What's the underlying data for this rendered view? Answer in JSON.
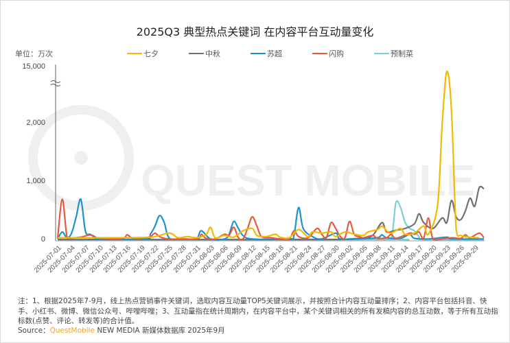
{
  "header": {
    "title": "2025Q3 典型热点关键词 在内容平台互动量变化",
    "unit_label": "单位：万次"
  },
  "legend": [
    {
      "label": "七夕",
      "color": "#f5b800"
    },
    {
      "label": "中秋",
      "color": "#707070"
    },
    {
      "label": "苏超",
      "color": "#1e90d0"
    },
    {
      "label": "闪购",
      "color": "#e8583a"
    },
    {
      "label": "预制菜",
      "color": "#7ccfd6"
    }
  ],
  "footer": {
    "note": "注：1、根据2025年7-9月，线上热点营销事件关键词，选取内容互动量TOP5关键词展示，并按照合计内容互动量排序；2、内容平台包括抖音、快手、小红书、微博、微信公众号、哔哩哔哩；3、互动量指在统计周期内，在内容平台中，某个关键词相关的所有发稿内容的总互动数，等于所有互动指标数(点赞、评论、转发等)的合计值。",
    "source_prefix": "Source：",
    "source_brand": "QuestMobile",
    "source_suffix": " NEW MEDIA 新媒体数据库 2025年9月"
  },
  "watermark": "QUEST MOBILE",
  "chart_data": {
    "type": "line",
    "title": "2025Q3 典型热点关键词 在内容平台互动量变化",
    "xlabel": "",
    "ylabel": "单位：万次",
    "y_ticks": [
      "0",
      "1,000",
      "2,000",
      "15,000"
    ],
    "y_axis_break": true,
    "ylim": [
      0,
      15000
    ],
    "grid": false,
    "legend_position": "top",
    "x_tick_labels": [
      "2025-07-01",
      "2025-07-04",
      "2025-07-07",
      "2025-07-10",
      "2025-07-13",
      "2025-07-16",
      "2025-07-19",
      "2025-07-22",
      "2025-07-25",
      "2025-07-28",
      "2025-07-31",
      "2025-08-03",
      "2025-08-06",
      "2025-08-09",
      "2025-08-12",
      "2025-08-15",
      "2025-08-18",
      "2025-08-21",
      "2025-08-24",
      "2025-08-27",
      "2025-08-30",
      "2025-09-02",
      "2025-09-05",
      "2025-09-08",
      "2025-09-11",
      "2025-09-14",
      "2025-09-17",
      "2025-09-20",
      "2025-09-23",
      "2025-09-26",
      "2025-09-29"
    ],
    "x_start": "2025-07-01",
    "x_end": "2025-09-30",
    "series": [
      {
        "name": "七夕",
        "color": "#f5b800",
        "points": [
          [
            0,
            40
          ],
          [
            10,
            40
          ],
          [
            20,
            50
          ],
          [
            24,
            120
          ],
          [
            26,
            40
          ],
          [
            28,
            60
          ],
          [
            30,
            40
          ],
          [
            32,
            90
          ],
          [
            33,
            220
          ],
          [
            34,
            40
          ],
          [
            36,
            80
          ],
          [
            38,
            50
          ],
          [
            40,
            160
          ],
          [
            42,
            200
          ],
          [
            43,
            80
          ],
          [
            45,
            60
          ],
          [
            47,
            100
          ],
          [
            48,
            50
          ],
          [
            50,
            40
          ],
          [
            52,
            180
          ],
          [
            54,
            60
          ],
          [
            55,
            140
          ],
          [
            57,
            120
          ],
          [
            59,
            140
          ],
          [
            60,
            60
          ],
          [
            62,
            140
          ],
          [
            64,
            100
          ],
          [
            66,
            80
          ],
          [
            67,
            140
          ],
          [
            69,
            180
          ],
          [
            70,
            240
          ],
          [
            71,
            160
          ],
          [
            72,
            120
          ],
          [
            74,
            200
          ],
          [
            75,
            100
          ],
          [
            77,
            120
          ],
          [
            79,
            240
          ],
          [
            80,
            100
          ],
          [
            82,
            600
          ],
          [
            83,
            2000
          ],
          [
            84,
            14000
          ],
          [
            85,
            5000
          ],
          [
            86,
            200
          ],
          [
            87,
            80
          ],
          [
            89,
            50
          ],
          [
            91,
            40
          ]
        ]
      },
      {
        "name": "中秋",
        "color": "#707070",
        "points": [
          [
            0,
            10
          ],
          [
            55,
            10
          ],
          [
            63,
            20
          ],
          [
            66,
            40
          ],
          [
            68,
            80
          ],
          [
            70,
            300
          ],
          [
            71,
            140
          ],
          [
            73,
            170
          ],
          [
            75,
            200
          ],
          [
            77,
            280
          ],
          [
            78,
            450
          ],
          [
            79,
            300
          ],
          [
            81,
            200
          ],
          [
            83,
            380
          ],
          [
            84,
            300
          ],
          [
            85,
            680
          ],
          [
            86,
            400
          ],
          [
            87,
            350
          ],
          [
            88,
            500
          ],
          [
            89,
            720
          ],
          [
            90,
            580
          ],
          [
            91,
            900
          ],
          [
            92,
            880
          ]
        ]
      },
      {
        "name": "苏超",
        "color": "#1e90d0",
        "points": [
          [
            0,
            20
          ],
          [
            1,
            140
          ],
          [
            2,
            40
          ],
          [
            3,
            120
          ],
          [
            4,
            400
          ],
          [
            5,
            700
          ],
          [
            6,
            150
          ],
          [
            7,
            100
          ],
          [
            8,
            60
          ],
          [
            9,
            20
          ],
          [
            19,
            20
          ],
          [
            20,
            100
          ],
          [
            21,
            240
          ],
          [
            22,
            420
          ],
          [
            23,
            300
          ],
          [
            24,
            40
          ],
          [
            26,
            20
          ],
          [
            28,
            20
          ],
          [
            30,
            20
          ],
          [
            31,
            160
          ],
          [
            33,
            20
          ],
          [
            36,
            20
          ],
          [
            37,
            100
          ],
          [
            38,
            320
          ],
          [
            39,
            200
          ],
          [
            40,
            80
          ],
          [
            42,
            20
          ],
          [
            50,
            20
          ],
          [
            51,
            80
          ],
          [
            52,
            560
          ],
          [
            53,
            200
          ],
          [
            55,
            60
          ],
          [
            57,
            20
          ],
          [
            60,
            120
          ],
          [
            61,
            20
          ],
          [
            65,
            20
          ],
          [
            69,
            40
          ],
          [
            70,
            90
          ],
          [
            71,
            40
          ],
          [
            74,
            30
          ],
          [
            76,
            100
          ],
          [
            77,
            30
          ],
          [
            80,
            20
          ],
          [
            84,
            50
          ],
          [
            85,
            20
          ],
          [
            92,
            20
          ]
        ]
      },
      {
        "name": "闪购",
        "color": "#e8583a",
        "points": [
          [
            0,
            30
          ],
          [
            1,
            700
          ],
          [
            2,
            60
          ],
          [
            3,
            40
          ],
          [
            5,
            50
          ],
          [
            7,
            90
          ],
          [
            8,
            50
          ],
          [
            10,
            30
          ],
          [
            14,
            30
          ],
          [
            15,
            90
          ],
          [
            16,
            40
          ],
          [
            18,
            30
          ],
          [
            20,
            60
          ],
          [
            21,
            120
          ],
          [
            22,
            60
          ],
          [
            24,
            20
          ],
          [
            30,
            20
          ],
          [
            31,
            100
          ],
          [
            32,
            30
          ],
          [
            34,
            20
          ],
          [
            36,
            100
          ],
          [
            37,
            80
          ],
          [
            38,
            220
          ],
          [
            39,
            40
          ],
          [
            40,
            20
          ],
          [
            41,
            200
          ],
          [
            42,
            400
          ],
          [
            43,
            240
          ],
          [
            44,
            60
          ],
          [
            46,
            40
          ],
          [
            48,
            20
          ],
          [
            50,
            20
          ],
          [
            51,
            160
          ],
          [
            52,
            60
          ],
          [
            54,
            40
          ],
          [
            56,
            200
          ],
          [
            57,
            100
          ],
          [
            58,
            40
          ],
          [
            59,
            300
          ],
          [
            60,
            200
          ],
          [
            61,
            60
          ],
          [
            62,
            40
          ],
          [
            63,
            320
          ],
          [
            64,
            100
          ],
          [
            65,
            60
          ],
          [
            66,
            40
          ],
          [
            68,
            80
          ],
          [
            69,
            30
          ],
          [
            71,
            40
          ],
          [
            72,
            100
          ],
          [
            73,
            30
          ],
          [
            76,
            120
          ],
          [
            77,
            100
          ],
          [
            78,
            140
          ],
          [
            79,
            30
          ],
          [
            80,
            380
          ],
          [
            81,
            20
          ],
          [
            83,
            20
          ],
          [
            85,
            40
          ],
          [
            87,
            30
          ],
          [
            88,
            90
          ],
          [
            89,
            40
          ],
          [
            91,
            120
          ],
          [
            92,
            40
          ]
        ]
      },
      {
        "name": "预制菜",
        "color": "#7ccfd6",
        "points": [
          [
            0,
            5
          ],
          [
            70,
            10
          ],
          [
            72,
            40
          ],
          [
            73,
            640
          ],
          [
            74,
            560
          ],
          [
            75,
            300
          ],
          [
            76,
            200
          ],
          [
            77,
            160
          ],
          [
            78,
            60
          ],
          [
            79,
            10
          ],
          [
            92,
            5
          ]
        ]
      }
    ]
  }
}
